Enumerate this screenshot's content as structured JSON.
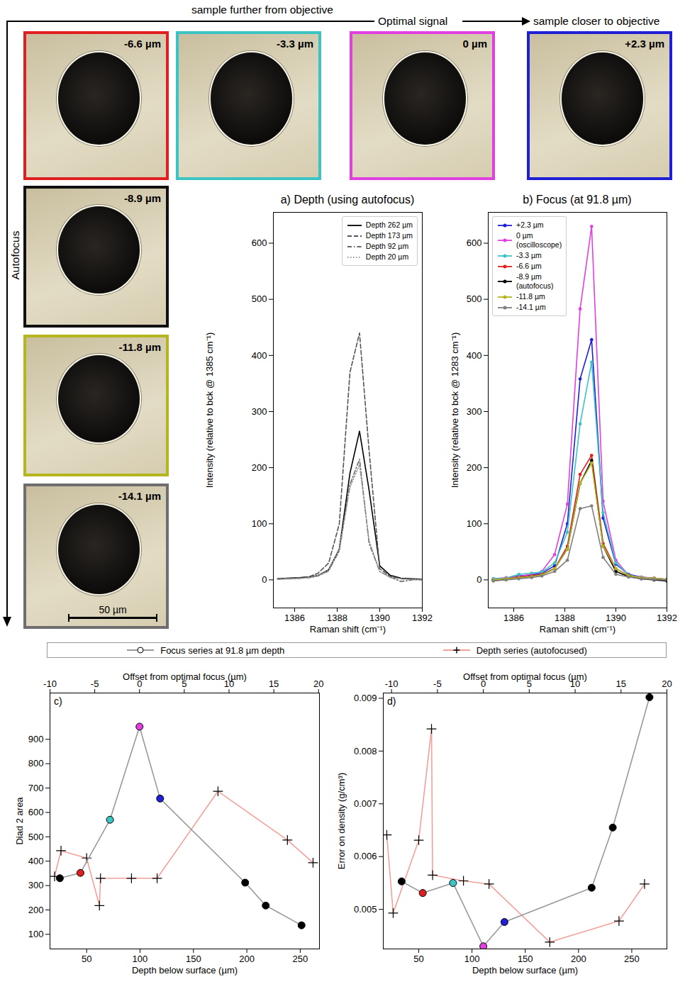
{
  "chart_data": [
    {
      "type": "line",
      "title": "a) Depth (using autofocus)",
      "x_label": "Raman shift (cm⁻¹)",
      "y_label": "Intensity (relative to bck @ 1385 cm⁻¹)",
      "xlim": [
        1385,
        1392
      ],
      "xticks": [
        1386,
        1388,
        1390,
        1392
      ],
      "ylim": [
        -50,
        655
      ],
      "yticks": [
        0,
        100,
        200,
        300,
        400,
        500,
        600
      ],
      "legend": "upper right",
      "x": [
        1385.2,
        1385.7,
        1386.2,
        1386.7,
        1387.1,
        1387.6,
        1388.1,
        1388.6,
        1389.05,
        1389.5,
        1390.0,
        1390.5,
        1391.0,
        1391.5,
        1392.0
      ],
      "series": [
        {
          "name": "Depth 262 µm",
          "color": "#000000",
          "line_style": "solid",
          "values": [
            2,
            3,
            4,
            5,
            8,
            18,
            55,
            190,
            265,
            160,
            25,
            8,
            3,
            2,
            1
          ]
        },
        {
          "name": "Depth 173 µm",
          "color": "#555555",
          "line_style": "dashed",
          "values": [
            2,
            3,
            4,
            6,
            12,
            30,
            100,
            370,
            440,
            230,
            20,
            6,
            2,
            1,
            0
          ]
        },
        {
          "name": "Depth 92 µm",
          "color": "#666666",
          "line_style": "dashdot",
          "values": [
            1,
            2,
            3,
            4,
            7,
            16,
            52,
            170,
            215,
            65,
            15,
            5,
            -3,
            0,
            1
          ]
        },
        {
          "name": "Depth 20 µm",
          "color": "#999999",
          "line_style": "dotted",
          "values": [
            1,
            2,
            2,
            4,
            8,
            17,
            55,
            165,
            205,
            70,
            15,
            4,
            2,
            1,
            0
          ]
        }
      ]
    },
    {
      "type": "line",
      "title": "b) Focus (at 91.8 µm)",
      "x_label": "Raman shift (cm⁻¹)",
      "y_label": "Intensity (relative to bck @ 1283 cm⁻¹)",
      "xlim": [
        1385,
        1392
      ],
      "xticks": [
        1386,
        1388,
        1390,
        1392
      ],
      "ylim": [
        -50,
        655
      ],
      "yticks": [
        0,
        100,
        200,
        300,
        400,
        500,
        600
      ],
      "legend": "upper left",
      "x": [
        1385.2,
        1385.7,
        1386.2,
        1386.7,
        1387.1,
        1387.6,
        1388.1,
        1388.6,
        1389.05,
        1389.5,
        1390.0,
        1390.5,
        1391.0,
        1391.5,
        1392.0
      ],
      "series": [
        {
          "name": "+2.3 µm",
          "color": "#1f1fd6",
          "marker": "o",
          "values": [
            1,
            3,
            7,
            9,
            12,
            25,
            100,
            358,
            428,
            110,
            28,
            10,
            5,
            3,
            1
          ]
        },
        {
          "name": "0 µm\n(oscilloscope)",
          "color": "#e040e0",
          "marker": "o",
          "values": [
            2,
            4,
            6,
            10,
            15,
            45,
            135,
            483,
            630,
            140,
            35,
            8,
            5,
            3,
            1
          ]
        },
        {
          "name": "-3.3 µm",
          "color": "#3cc3c3",
          "marker": "o",
          "values": [
            2,
            3,
            10,
            12,
            14,
            30,
            85,
            278,
            388,
            120,
            30,
            9,
            4,
            2,
            1
          ]
        },
        {
          "name": "-6.6 µm",
          "color": "#e02020",
          "marker": "o",
          "values": [
            0,
            2,
            5,
            7,
            10,
            20,
            60,
            188,
            222,
            65,
            20,
            8,
            3,
            1,
            0
          ]
        },
        {
          "name": "-8.9 µm\n(autofocus)",
          "color": "#000000",
          "marker": "o",
          "values": [
            -1,
            1,
            4,
            6,
            9,
            20,
            55,
            172,
            213,
            60,
            15,
            6,
            2,
            0,
            -2
          ]
        },
        {
          "name": "-11.8 µm",
          "color": "#b5b520",
          "marker": "o",
          "values": [
            0,
            2,
            4,
            6,
            9,
            20,
            55,
            172,
            208,
            60,
            20,
            7,
            4,
            3,
            1
          ]
        },
        {
          "name": "-14.1 µm",
          "color": "#808080",
          "marker": "o",
          "values": [
            -2,
            0,
            2,
            4,
            7,
            15,
            35,
            127,
            132,
            40,
            10,
            5,
            2,
            1,
            0
          ]
        }
      ]
    },
    {
      "type": "line",
      "title": "c)",
      "x_label": "Depth below surface (µm)",
      "x2_label": "Offset from optimal focus (µm)",
      "y_label": "Diad 2 area",
      "xlim": [
        15.7,
        268
      ],
      "xticks": [
        50,
        100,
        150,
        200,
        250
      ],
      "x2lim": [
        -10,
        20.1
      ],
      "x2ticks": [
        -10,
        -5,
        0,
        5,
        10,
        15,
        20
      ],
      "ylim": [
        40,
        1090
      ],
      "yticks": [
        100,
        200,
        300,
        400,
        500,
        600,
        700,
        800,
        900
      ],
      "legend": "above",
      "series": [
        {
          "name": "Focus series at 91.8 µm depth",
          "axis": "x2",
          "color": "#999999",
          "marker": "o",
          "colors": [
            "#000000",
            "#e02020",
            "#3cc3c3",
            "#e040e0",
            "#1f1fd6",
            "#000000",
            "#000000",
            "#000000"
          ],
          "x": [
            -8.9,
            -6.6,
            -3.3,
            0,
            2.3,
            11.8,
            14.1,
            18.1
          ],
          "values": [
            330,
            352,
            570,
            952,
            657,
            312,
            218,
            137
          ]
        },
        {
          "name": "Depth series (autofocused)",
          "color": "#f4a09a",
          "marker": "+",
          "x": [
            20,
            26,
            50,
            62,
            63,
            92,
            116,
            173,
            238,
            262
          ],
          "values": [
            338,
            443,
            413,
            218,
            330,
            330,
            330,
            687,
            487,
            394
          ]
        }
      ]
    },
    {
      "type": "line",
      "title": "d)",
      "x_label": "Depth below surface (µm)",
      "x2_label": "Offset from optimal focus (µm)",
      "y_label": "Error on density (g/cm³)",
      "xlim": [
        16.7,
        283
      ],
      "xticks": [
        50,
        100,
        150,
        200,
        250
      ],
      "x2lim": [
        -10.9,
        20
      ],
      "x2ticks": [
        -10,
        -5,
        0,
        5,
        10,
        15,
        20
      ],
      "ylim": [
        0.00425,
        0.0091
      ],
      "yticks": [
        0.005,
        0.006,
        0.007,
        0.008,
        0.009
      ],
      "series": [
        {
          "name": "Focus series at 91.8 µm depth",
          "axis": "x2",
          "color": "#999999",
          "marker": "o",
          "colors": [
            "#000000",
            "#e02020",
            "#3cc3c3",
            "#e040e0",
            "#1f1fd6",
            "#000000",
            "#000000",
            "#000000"
          ],
          "x": [
            -8.9,
            -6.6,
            -3.3,
            0,
            2.3,
            11.8,
            14.1,
            18.1
          ],
          "values": [
            0.00553,
            0.00531,
            0.0055,
            0.0043,
            0.00476,
            0.00541,
            0.00655,
            0.00902
          ]
        },
        {
          "name": "Depth series (autofocused)",
          "color": "#f4a09a",
          "marker": "+",
          "x": [
            20,
            26,
            50,
            62,
            63,
            92,
            116,
            173,
            238,
            262
          ],
          "values": [
            0.00641,
            0.00493,
            0.00631,
            0.00842,
            0.00565,
            0.00554,
            0.00548,
            0.00438,
            0.00478,
            0.00548
          ]
        }
      ]
    }
  ],
  "figure": {
    "arrow_top": {
      "left": "sample further from objective",
      "center": "Optimal signal",
      "right": "sample closer to objective"
    },
    "arrow_side": "Autofocus",
    "images": [
      {
        "label": "-6.6 µm",
        "color": "#e02020"
      },
      {
        "label": "-3.3 µm",
        "color": "#3cc3c3"
      },
      {
        "label": "0 µm",
        "color": "#e040e0"
      },
      {
        "label": "+2.3 µm",
        "color": "#1f1fd6"
      },
      {
        "label": "-8.9 µm",
        "color": "#111111"
      },
      {
        "label": "-11.8 µm",
        "color": "#b5b520"
      },
      {
        "label": "-14.1 µm",
        "color": "#6e6e6e"
      }
    ],
    "scale_bar": "50 µm"
  }
}
